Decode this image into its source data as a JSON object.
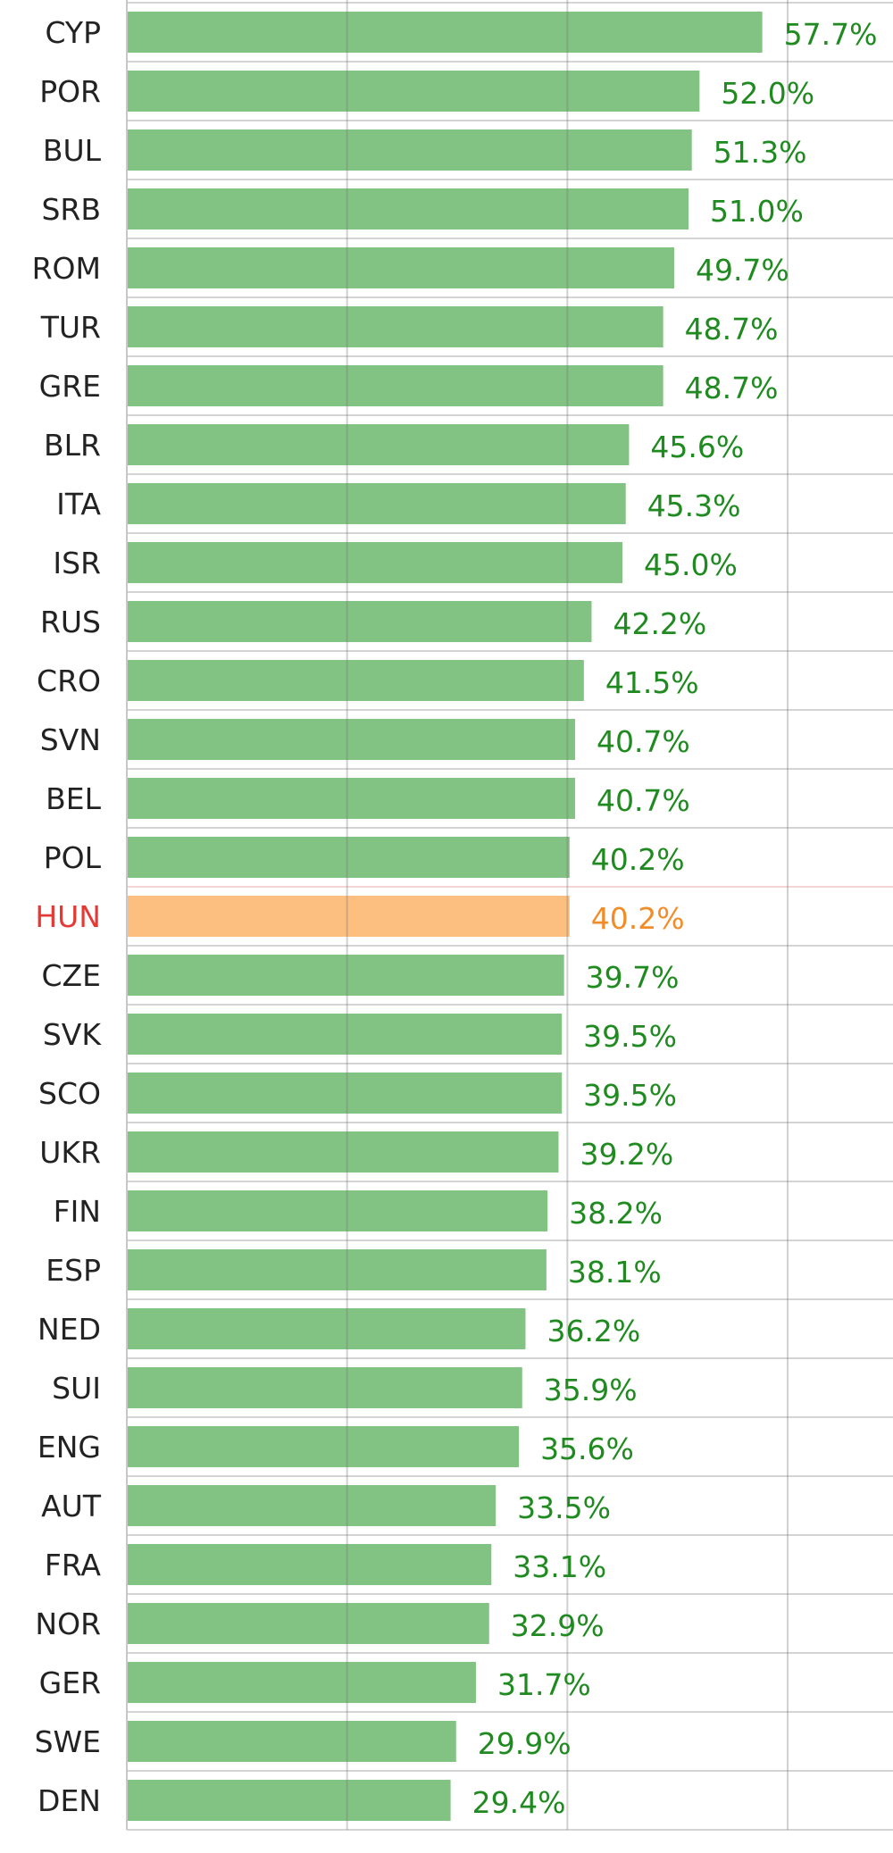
{
  "chart_data": {
    "type": "bar",
    "orientation": "horizontal",
    "categories": [
      "CYP",
      "POR",
      "BUL",
      "SRB",
      "ROM",
      "TUR",
      "GRE",
      "BLR",
      "ITA",
      "ISR",
      "RUS",
      "CRO",
      "SVN",
      "BEL",
      "POL",
      "HUN",
      "CZE",
      "SVK",
      "SCO",
      "UKR",
      "FIN",
      "ESP",
      "NED",
      "SUI",
      "ENG",
      "AUT",
      "FRA",
      "NOR",
      "GER",
      "SWE",
      "DEN"
    ],
    "values": [
      57.7,
      52.0,
      51.3,
      51.0,
      49.7,
      48.7,
      48.7,
      45.6,
      45.3,
      45.0,
      42.2,
      41.5,
      40.7,
      40.7,
      40.2,
      40.2,
      39.7,
      39.5,
      39.5,
      39.2,
      38.2,
      38.1,
      36.2,
      35.9,
      35.6,
      33.5,
      33.1,
      32.9,
      31.7,
      29.9,
      29.4
    ],
    "value_labels": [
      "57.7%",
      "52.0%",
      "51.3%",
      "51.0%",
      "49.7%",
      "48.7%",
      "48.7%",
      "45.6%",
      "45.3%",
      "45.0%",
      "42.2%",
      "41.5%",
      "40.7%",
      "40.7%",
      "40.2%",
      "40.2%",
      "39.7%",
      "39.5%",
      "39.5%",
      "39.2%",
      "38.2%",
      "38.1%",
      "36.2%",
      "35.9%",
      "35.6%",
      "33.5%",
      "33.1%",
      "32.9%",
      "31.7%",
      "29.9%",
      "29.4%"
    ],
    "highlight": "HUN",
    "xlim": [
      0,
      60
    ],
    "gridlines_at": [
      0,
      20,
      40,
      60
    ],
    "grid": true,
    "colors": {
      "bar": "#82c282",
      "bar_highlight": "#fdbf80",
      "value_label": "#1f8a1f",
      "value_label_highlight": "#f28c28",
      "category_label": "#222222",
      "category_label_highlight": "#e53935",
      "grid": "#d4d4d4",
      "highlight_separator": "#f7d4d4"
    }
  }
}
